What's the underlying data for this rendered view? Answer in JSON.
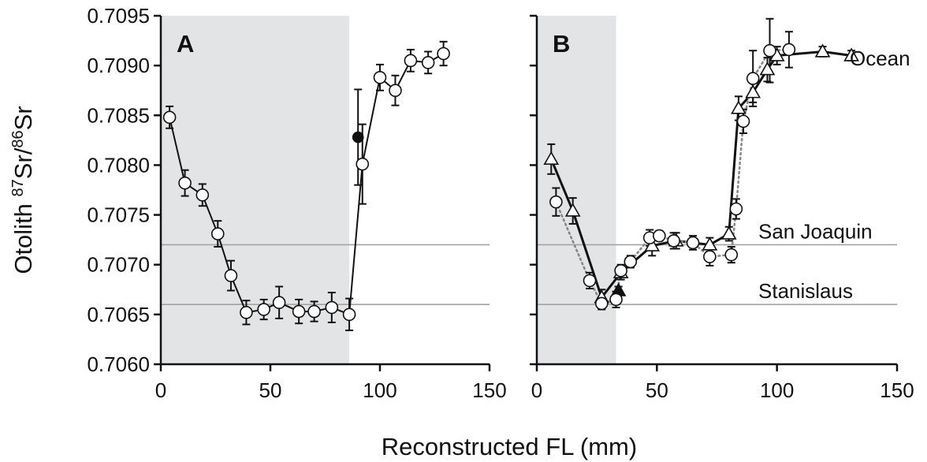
{
  "colors": {
    "shade": "#e3e4e6",
    "reference_line": "#a3a3a3",
    "axis": "#111111",
    "marker_open": "#ffffff",
    "marker_filled": "#111111",
    "dotted_line": "#888888"
  },
  "ylabel": {
    "prefix": "Otolith ",
    "sup1": "87",
    "mid": "Sr/",
    "sup2": "86",
    "suffix": "Sr"
  },
  "xlabel": "Reconstructed FL (mm)",
  "chart_data": [
    {
      "type": "line",
      "panel": "A",
      "xlim": [
        0,
        150
      ],
      "ylim": [
        0.706,
        0.7095
      ],
      "xticks": [
        "0",
        "50",
        "100",
        "150"
      ],
      "yticks": [
        "0.7060",
        "0.7065",
        "0.7070",
        "0.7075",
        "0.7080",
        "0.7085",
        "0.7090",
        "0.7095"
      ],
      "shaded_region": [
        0,
        86
      ],
      "reference_lines": [
        {
          "label": "",
          "y": 0.7072
        },
        {
          "label": "",
          "y": 0.7066
        }
      ],
      "series": [
        {
          "marker": "circle-open",
          "line": "solid",
          "x": [
            4,
            11,
            19,
            26,
            32,
            39,
            47,
            54,
            63,
            70,
            78,
            86,
            92,
            100,
            107,
            114,
            122,
            129
          ],
          "y": [
            0.70848,
            0.70782,
            0.7077,
            0.70731,
            0.70689,
            0.70652,
            0.70655,
            0.70662,
            0.70653,
            0.70653,
            0.70657,
            0.7065,
            0.70801,
            0.70888,
            0.70875,
            0.70905,
            0.70903,
            0.70912
          ],
          "err": [
            0.00011,
            0.00013,
            0.00011,
            0.00013,
            0.00015,
            0.00012,
            0.0001,
            0.00016,
            0.00012,
            0.0001,
            0.00015,
            0.00016,
            0.0004,
            0.00013,
            0.00015,
            0.00011,
            0.00011,
            0.00012
          ]
        },
        {
          "marker": "circle-filled",
          "line": "none",
          "x": [
            90
          ],
          "y": [
            0.70828
          ],
          "err": [
            0.00048
          ]
        }
      ]
    },
    {
      "type": "line",
      "panel": "B",
      "xlim": [
        0,
        150
      ],
      "ylim": [
        0.706,
        0.7095
      ],
      "xticks": [
        "0",
        "50",
        "100",
        "150"
      ],
      "yticks": [
        "0.7060",
        "0.7065",
        "0.7070",
        "0.7075",
        "0.7080",
        "0.7085",
        "0.7090",
        "0.7095"
      ],
      "shaded_region": [
        0,
        33
      ],
      "reference_lines": [
        {
          "label": "San Joaquin",
          "y": 0.7072
        },
        {
          "label": "Stanislaus",
          "y": 0.7066
        }
      ],
      "annotation": "Ocean",
      "series": [
        {
          "marker": "triangle-open",
          "line": "solid",
          "x": [
            6,
            15,
            27,
            35,
            48,
            58,
            72,
            80,
            84,
            90,
            96,
            100,
            119,
            131
          ],
          "y": [
            0.70806,
            0.70754,
            0.70667,
            0.70692,
            0.70719,
            0.70724,
            0.7072,
            0.70731,
            0.70857,
            0.70873,
            0.70896,
            0.7091,
            0.70914,
            0.7091
          ],
          "err": [
            0.00015,
            0.00013,
            8e-05,
            7e-05,
            0.0001,
            8e-05,
            7e-05,
            7e-05,
            0.00012,
            0.0001,
            0.00012,
            9e-05,
            5e-05,
            5e-05
          ]
        },
        {
          "marker": "triangle-filled",
          "line": "none",
          "x": [
            34
          ],
          "y": [
            0.70674
          ],
          "err": [
            4e-05
          ]
        },
        {
          "marker": "circle-open",
          "line": "dotted",
          "x": [
            8,
            22,
            27,
            33,
            35,
            39,
            47,
            51,
            57,
            65,
            72,
            81,
            83,
            86,
            90,
            97,
            105
          ],
          "y": [
            0.70763,
            0.70684,
            0.70661,
            0.70665,
            0.70694,
            0.70703,
            0.70727,
            0.70729,
            0.70724,
            0.70722,
            0.70708,
            0.7071,
            0.70756,
            0.70844,
            0.70887,
            0.70915,
            0.70916
          ],
          "err": [
            0.00014,
            8e-05,
            6e-05,
            8e-05,
            6e-05,
            6e-05,
            8e-05,
            5e-05,
            8e-05,
            7e-05,
            9e-05,
            8e-05,
            0.0001,
            0.00012,
            0.00028,
            0.00032,
            0.00018
          ]
        }
      ]
    }
  ]
}
